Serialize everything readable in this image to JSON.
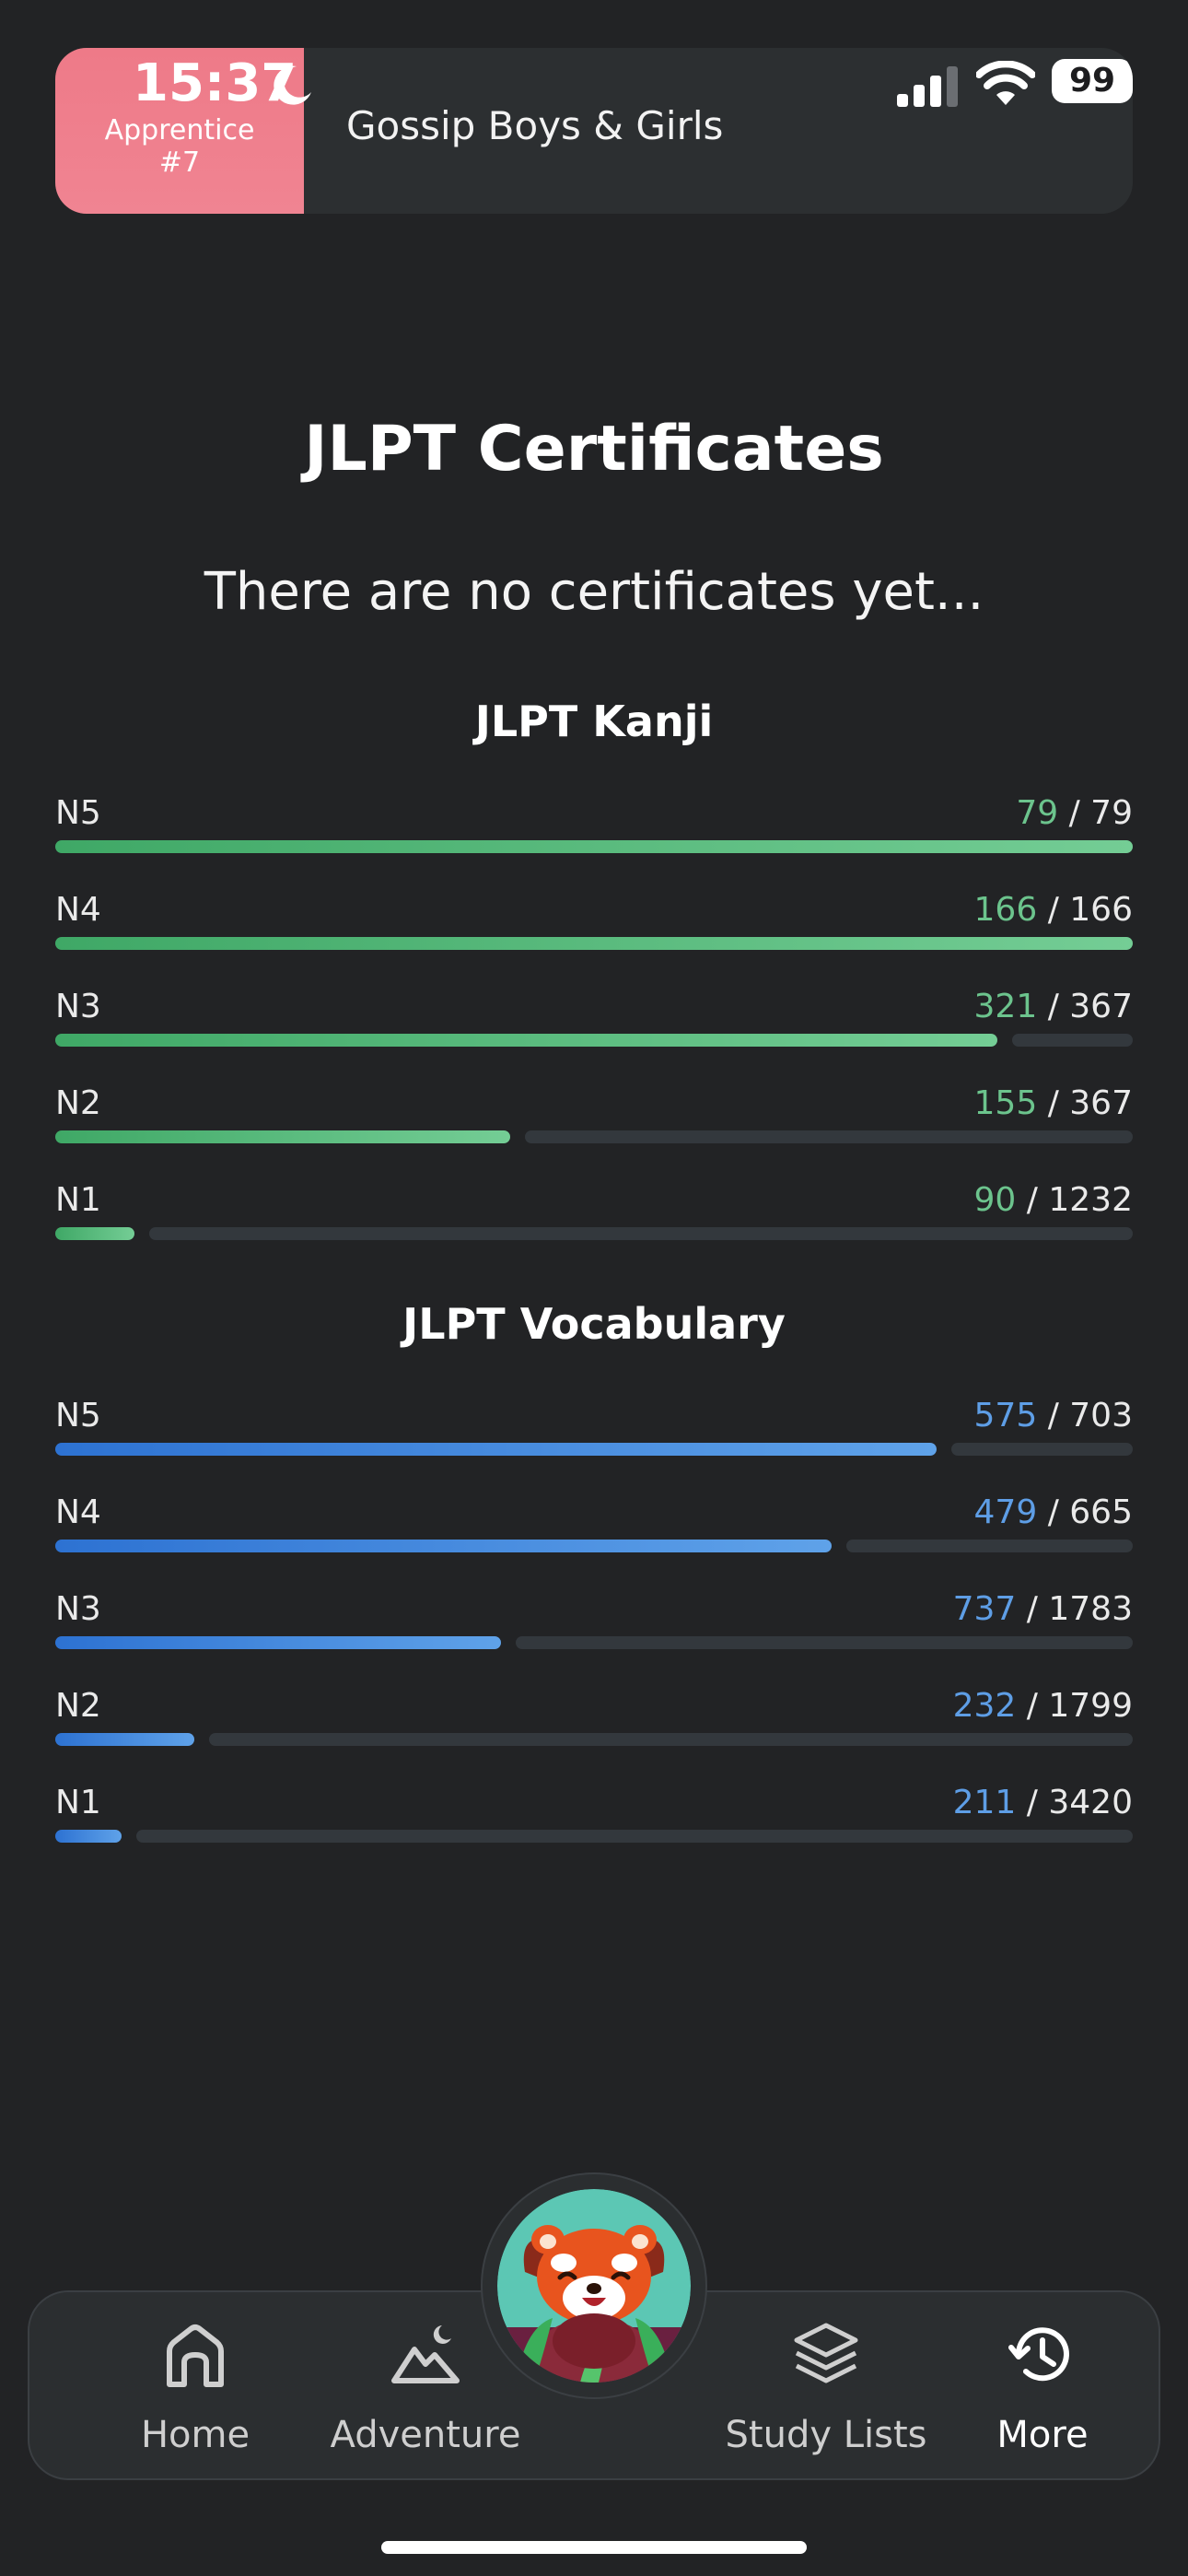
{
  "status": {
    "time": "15:37",
    "battery": "99"
  },
  "header": {
    "level_label": "Apprentice #7",
    "deck_title": "Gossip Boys & Girls",
    "accent_color": "#ee7a88"
  },
  "page": {
    "title": "JLPT Certificates",
    "empty_text": "There are no certificates yet..."
  },
  "kanji": {
    "title": "JLPT Kanji",
    "color": "#5cbf80",
    "rows": [
      {
        "level": "N5",
        "done": "79",
        "total": "/ 79",
        "fraction": 1.0
      },
      {
        "level": "N4",
        "done": "166",
        "total": "/ 166",
        "fraction": 1.0
      },
      {
        "level": "N3",
        "done": "321",
        "total": "/ 367",
        "fraction": 0.8747
      },
      {
        "level": "N2",
        "done": "155",
        "total": "/ 367",
        "fraction": 0.4223
      },
      {
        "level": "N1",
        "done": "90",
        "total": "/ 1232",
        "fraction": 0.0731
      }
    ]
  },
  "vocab": {
    "title": "JLPT Vocabulary",
    "color": "#4a8ee0",
    "rows": [
      {
        "level": "N5",
        "done": "575",
        "total": "/ 703",
        "fraction": 0.8179
      },
      {
        "level": "N4",
        "done": "479",
        "total": "/ 665",
        "fraction": 0.7203
      },
      {
        "level": "N3",
        "done": "737",
        "total": "/ 1783",
        "fraction": 0.4133
      },
      {
        "level": "N2",
        "done": "232",
        "total": "/ 1799",
        "fraction": 0.129
      },
      {
        "level": "N1",
        "done": "211",
        "total": "/ 3420",
        "fraction": 0.0617
      }
    ]
  },
  "nav": {
    "home": "Home",
    "adventure": "Adventure",
    "study_lists": "Study Lists",
    "more": "More"
  }
}
